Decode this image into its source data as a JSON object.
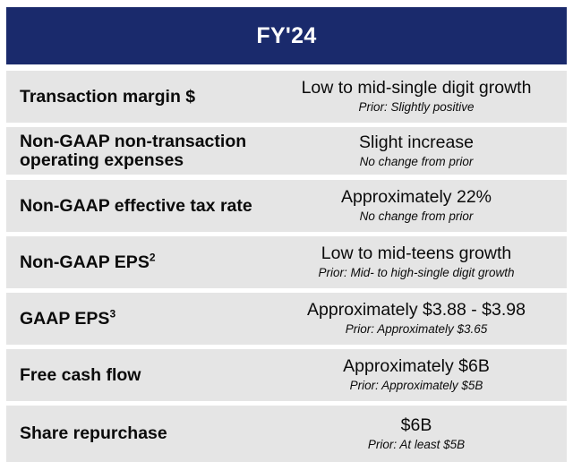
{
  "header": {
    "title": "FY'24"
  },
  "rows": [
    {
      "label": "Transaction margin $",
      "sup": "",
      "value": "Low to mid-single digit growth",
      "note": "Prior: Slightly positive"
    },
    {
      "label": "Non-GAAP non-transaction operating expenses",
      "sup": "",
      "value": "Slight increase",
      "note": "No change from prior"
    },
    {
      "label": "Non-GAAP effective tax rate",
      "sup": "",
      "value": "Approximately 22%",
      "note": "No change from prior"
    },
    {
      "label": "Non-GAAP EPS",
      "sup": "2",
      "value": "Low to mid-teens growth",
      "note": "Prior: Mid- to high-single digit growth"
    },
    {
      "label": "GAAP EPS",
      "sup": "3",
      "value": "Approximately $3.88 - $3.98",
      "note": "Prior: Approximately $3.65"
    },
    {
      "label": "Free cash flow",
      "sup": "",
      "value": "Approximately $6B",
      "note": "Prior: Approximately $5B"
    },
    {
      "label": "Share repurchase",
      "sup": "",
      "value": "$6B",
      "note": "Prior: At least $5B"
    }
  ]
}
